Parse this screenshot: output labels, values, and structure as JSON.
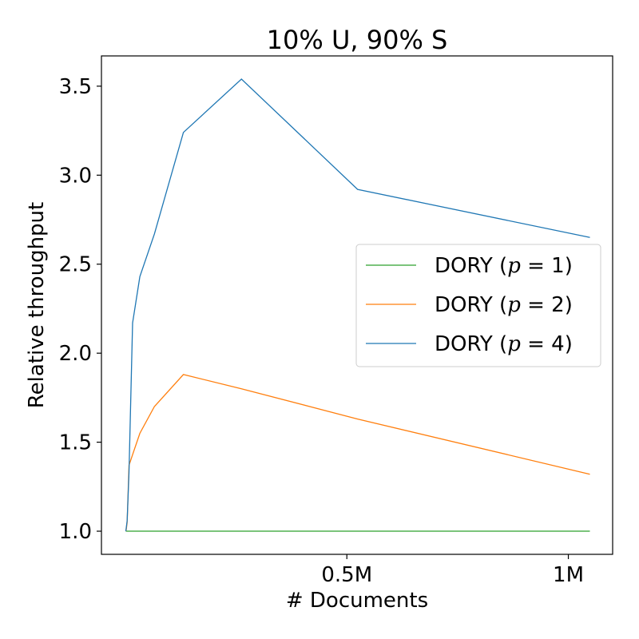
{
  "chart_data": {
    "type": "line",
    "title": "10% U, 90% S",
    "xlabel": "# Documents",
    "ylabel": "Relative throughput",
    "xlim": [
      -54000,
      1100000
    ],
    "ylim": [
      0.87,
      3.67
    ],
    "xticks": [
      {
        "value": 500000,
        "label": "0.5M"
      },
      {
        "value": 1000000,
        "label": "1M"
      }
    ],
    "yticks": [
      {
        "value": 1.0,
        "label": "1.0"
      },
      {
        "value": 1.5,
        "label": "1.5"
      },
      {
        "value": 2.0,
        "label": "2.0"
      },
      {
        "value": 2.5,
        "label": "2.5"
      },
      {
        "value": 3.0,
        "label": "3.0"
      },
      {
        "value": 3.5,
        "label": "3.5"
      }
    ],
    "grid": false,
    "legend_position": "center-right",
    "series": [
      {
        "name": "DORY (p = 1)",
        "legend_text": "DORY (",
        "legend_math": "p",
        "legend_eq": " = 1)",
        "color": "#2ca02c",
        "x": [
          1024,
          2048,
          4096,
          8192,
          16384,
          32768,
          65536,
          131072,
          262144,
          524288,
          1048576
        ],
        "y": [
          1.0,
          1.0,
          1.0,
          1.0,
          1.0,
          1.0,
          1.0,
          1.0,
          1.0,
          1.0,
          1.0
        ]
      },
      {
        "name": "DORY (p = 2)",
        "legend_text": "DORY (",
        "legend_math": "p",
        "legend_eq": " = 2)",
        "color": "#ff7f0e",
        "x": [
          1024,
          2048,
          4096,
          8192,
          16384,
          32768,
          65536,
          131072,
          262144,
          524288,
          1048576
        ],
        "y": [
          1.0,
          1.01,
          1.05,
          1.37,
          1.43,
          1.55,
          1.7,
          1.88,
          1.8,
          1.63,
          1.32
        ]
      },
      {
        "name": "DORY (p = 4)",
        "legend_text": "DORY (",
        "legend_math": "p",
        "legend_eq": " = 4)",
        "color": "#1f77b4",
        "x": [
          1024,
          2048,
          4096,
          8192,
          16384,
          32768,
          65536,
          131072,
          262144,
          524288,
          1048576
        ],
        "y": [
          1.0,
          1.02,
          1.06,
          1.33,
          2.17,
          2.43,
          2.67,
          3.24,
          3.54,
          2.92,
          2.65
        ]
      }
    ]
  }
}
